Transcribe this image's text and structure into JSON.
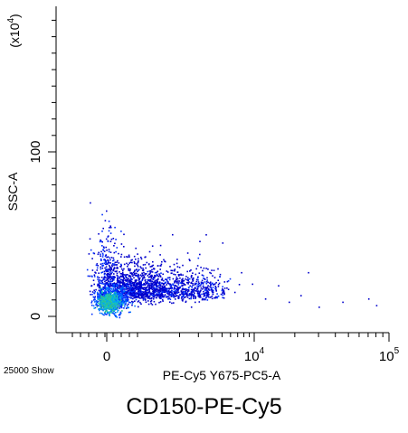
{
  "chart_data": {
    "type": "scatter",
    "title": "",
    "xlabel": "PE-Cy5 Y675-PC5-A",
    "ylabel": "SSC-A",
    "y_multiplier": "(x10",
    "y_multiplier_exp": "4",
    "y_multiplier_close": ")",
    "x_scale": "biexponential",
    "y_scale": "linear",
    "xlim": [
      -300,
      100000
    ],
    "ylim": [
      -5,
      180
    ],
    "x_ticks": [
      {
        "value": 0,
        "label": "0",
        "sup": ""
      },
      {
        "value": 10000,
        "label": "10",
        "sup": "4"
      },
      {
        "value": 100000,
        "label": "10",
        "sup": "5"
      }
    ],
    "y_ticks": [
      {
        "value": 0,
        "label": "0"
      },
      {
        "value": 100,
        "label": "100"
      }
    ],
    "events_label": "25000 Show",
    "density_colors": [
      "#0000cc",
      "#0030ff",
      "#0070ff",
      "#00a8f0",
      "#20c8b0",
      "#30c090"
    ],
    "outliers": [
      {
        "x": 7500,
        "y": 27
      },
      {
        "x": 9500,
        "y": 20
      },
      {
        "x": 12000,
        "y": 11
      },
      {
        "x": 15000,
        "y": 19
      },
      {
        "x": 25000,
        "y": 27
      },
      {
        "x": 30000,
        "y": 6
      },
      {
        "x": 45000,
        "y": 9
      },
      {
        "x": 70000,
        "y": 11
      },
      {
        "x": 80000,
        "y": 7
      },
      {
        "x": 5000,
        "y": 45
      },
      {
        "x": 3500,
        "y": 50
      },
      {
        "x": 6500,
        "y": 15
      },
      {
        "x": 18000,
        "y": 9
      },
      {
        "x": 22000,
        "y": 13
      }
    ]
  },
  "caption": "CD150-PE-Cy5"
}
